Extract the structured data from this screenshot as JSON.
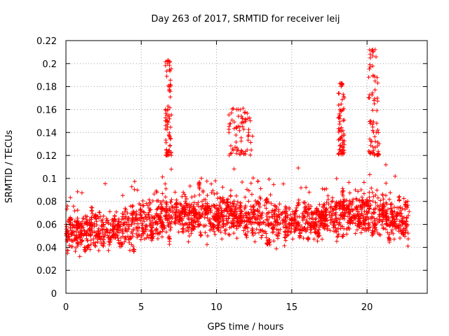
{
  "chart_data": {
    "type": "scatter",
    "title": "Day 263 of 2017, SRMTID for receiver leij",
    "xlabel": "GPS time / hours",
    "ylabel": "SRMTID / TECUs",
    "xlim": [
      0,
      24
    ],
    "ylim": [
      0,
      0.22
    ],
    "xticks": [
      0,
      5,
      10,
      15,
      20
    ],
    "yticks": [
      0,
      0.02,
      0.04,
      0.06,
      0.08,
      0.1,
      0.12,
      0.14,
      0.16,
      0.18,
      0.2,
      0.22
    ],
    "ytick_labels": [
      "0",
      "0.02",
      "0.04",
      "0.06",
      "0.08",
      "0.1",
      "0.12",
      "0.14",
      "0.16",
      "0.18",
      "0.2",
      "0.22"
    ],
    "xtick_labels": [
      "0",
      "5",
      "10",
      "15",
      "20"
    ],
    "grid": true,
    "marker": "+",
    "color": "#ff0000",
    "data_range": [
      0,
      22.8
    ],
    "baseline_band": [
      [
        0,
        0.052
      ],
      [
        3,
        0.054
      ],
      [
        5,
        0.062
      ],
      [
        7,
        0.068
      ],
      [
        10,
        0.068
      ],
      [
        12,
        0.066
      ],
      [
        15,
        0.062
      ],
      [
        18,
        0.066
      ],
      [
        20,
        0.07
      ],
      [
        22.8,
        0.06
      ]
    ],
    "peaks": [
      {
        "x": [
          6.6,
          7.0
        ],
        "y": [
          0.12,
          0.203
        ]
      },
      {
        "x": [
          10.8,
          12.4
        ],
        "y": [
          0.12,
          0.161
        ]
      },
      {
        "x": [
          18.1,
          18.5
        ],
        "y": [
          0.12,
          0.184
        ]
      },
      {
        "x": [
          20.1,
          20.8
        ],
        "y": [
          0.12,
          0.213
        ]
      }
    ]
  }
}
